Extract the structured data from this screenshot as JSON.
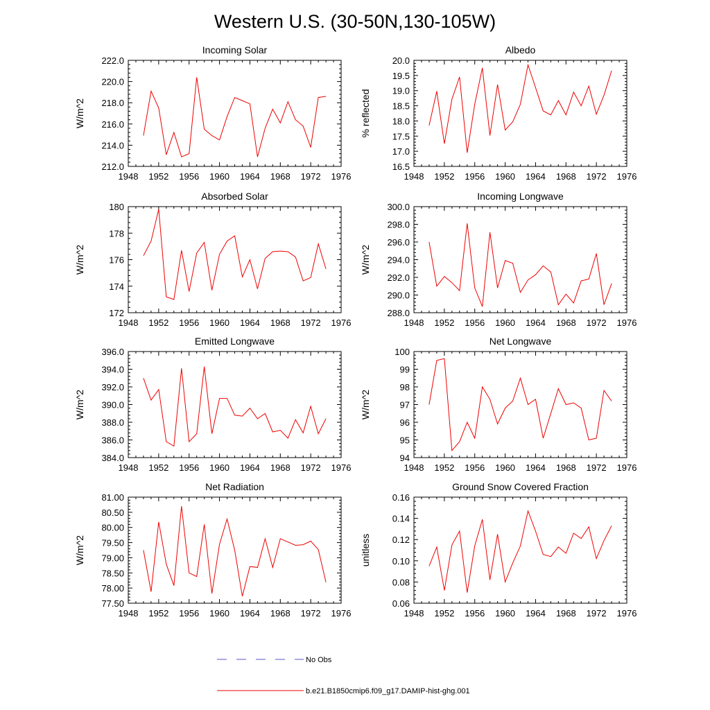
{
  "title": "Western U.S. (30-50N,130-105W)",
  "legend": {
    "entries": [
      {
        "label": "No Obs",
        "color": "#5555cc",
        "dash": true
      },
      {
        "label": "b.e21.B1850cmip6.f09_g17.DAMIP-hist-ghg.001",
        "color": "#ee0000",
        "dash": false
      }
    ]
  },
  "line_color": "#ee0000",
  "chart_data": [
    {
      "type": "line",
      "title": "Incoming Solar",
      "xlabel": "",
      "ylabel": "W/m^2",
      "xlim": [
        1948,
        1976
      ],
      "ylim": [
        212.0,
        222.0
      ],
      "xticks": [
        1948,
        1952,
        1956,
        1960,
        1964,
        1968,
        1972,
        1976
      ],
      "yticks": [
        "212.0",
        "214.0",
        "216.0",
        "218.0",
        "220.0",
        "222.0"
      ],
      "x": [
        1950,
        1951,
        1952,
        1953,
        1954,
        1955,
        1956,
        1957,
        1958,
        1959,
        1960,
        1961,
        1962,
        1963,
        1964,
        1965,
        1966,
        1967,
        1968,
        1969,
        1970,
        1971,
        1972,
        1973,
        1974
      ],
      "series": [
        {
          "name": "b.e21.B1850cmip6.f09_g17.DAMIP-hist-ghg.001",
          "values": [
            214.9,
            219.1,
            217.5,
            213.1,
            215.2,
            212.9,
            213.2,
            220.4,
            215.5,
            214.9,
            214.5,
            216.7,
            218.5,
            218.2,
            217.9,
            212.9,
            215.6,
            217.4,
            216.1,
            218.1,
            216.4,
            215.8,
            213.8,
            218.5,
            218.6
          ]
        }
      ]
    },
    {
      "type": "line",
      "title": "Albedo",
      "xlabel": "",
      "ylabel": "% reflected",
      "xlim": [
        1948,
        1976
      ],
      "ylim": [
        16.5,
        20.0
      ],
      "xticks": [
        1948,
        1952,
        1956,
        1960,
        1964,
        1968,
        1972,
        1976
      ],
      "yticks": [
        "16.5",
        "17.0",
        "17.5",
        "18.0",
        "18.5",
        "19.0",
        "19.5",
        "20.0"
      ],
      "x": [
        1950,
        1951,
        1952,
        1953,
        1954,
        1955,
        1956,
        1957,
        1958,
        1959,
        1960,
        1961,
        1962,
        1963,
        1964,
        1965,
        1966,
        1967,
        1968,
        1969,
        1970,
        1971,
        1972,
        1973,
        1974
      ],
      "series": [
        {
          "name": "b.e21.B1850cmip6.f09_g17.DAMIP-hist-ghg.001",
          "values": [
            17.85,
            18.98,
            17.25,
            18.72,
            19.45,
            16.95,
            18.55,
            19.75,
            17.52,
            19.2,
            17.7,
            17.97,
            18.55,
            19.85,
            19.1,
            18.33,
            18.2,
            18.67,
            18.2,
            18.95,
            18.5,
            19.15,
            18.22,
            18.85,
            19.66
          ]
        }
      ]
    },
    {
      "type": "line",
      "title": "Absorbed Solar",
      "xlabel": "",
      "ylabel": "W/m^2",
      "xlim": [
        1948,
        1976
      ],
      "ylim": [
        172,
        180
      ],
      "xticks": [
        1948,
        1952,
        1956,
        1960,
        1964,
        1968,
        1972,
        1976
      ],
      "yticks": [
        "172",
        "174",
        "176",
        "178",
        "180"
      ],
      "x": [
        1950,
        1951,
        1952,
        1953,
        1954,
        1955,
        1956,
        1957,
        1958,
        1959,
        1960,
        1961,
        1962,
        1963,
        1964,
        1965,
        1966,
        1967,
        1968,
        1969,
        1970,
        1971,
        1972,
        1973,
        1974
      ],
      "series": [
        {
          "name": "b.e21.B1850cmip6.f09_g17.DAMIP-hist-ghg.001",
          "values": [
            176.3,
            177.4,
            179.8,
            173.2,
            173.0,
            176.7,
            173.6,
            176.5,
            177.3,
            173.7,
            176.4,
            177.4,
            177.8,
            174.7,
            176.0,
            173.8,
            176.1,
            176.6,
            176.65,
            176.6,
            176.2,
            174.4,
            174.65,
            177.2,
            175.3
          ]
        }
      ]
    },
    {
      "type": "line",
      "title": "Incoming Longwave",
      "xlabel": "",
      "ylabel": "W/m^2",
      "xlim": [
        1948,
        1976
      ],
      "ylim": [
        288.0,
        300.0
      ],
      "xticks": [
        1948,
        1952,
        1956,
        1960,
        1964,
        1968,
        1972,
        1976
      ],
      "yticks": [
        "288.0",
        "290.0",
        "292.0",
        "294.0",
        "296.0",
        "298.0",
        "300.0"
      ],
      "x": [
        1950,
        1951,
        1952,
        1953,
        1954,
        1955,
        1956,
        1957,
        1958,
        1959,
        1960,
        1961,
        1962,
        1963,
        1964,
        1965,
        1966,
        1967,
        1968,
        1969,
        1970,
        1971,
        1972,
        1973,
        1974
      ],
      "series": [
        {
          "name": "b.e21.B1850cmip6.f09_g17.DAMIP-hist-ghg.001",
          "values": [
            296.0,
            291.0,
            292.1,
            291.4,
            290.5,
            298.1,
            290.8,
            288.7,
            297.1,
            290.8,
            293.9,
            293.6,
            290.3,
            291.7,
            292.3,
            293.3,
            292.6,
            288.9,
            290.1,
            289.1,
            291.6,
            291.8,
            294.7,
            288.9,
            291.3
          ]
        }
      ]
    },
    {
      "type": "line",
      "title": "Emitted Longwave",
      "xlabel": "",
      "ylabel": "W/m^2",
      "xlim": [
        1948,
        1976
      ],
      "ylim": [
        384.0,
        396.0
      ],
      "xticks": [
        1948,
        1952,
        1956,
        1960,
        1964,
        1968,
        1972,
        1976
      ],
      "yticks": [
        "384.0",
        "386.0",
        "388.0",
        "390.0",
        "392.0",
        "394.0",
        "396.0"
      ],
      "x": [
        1950,
        1951,
        1952,
        1953,
        1954,
        1955,
        1956,
        1957,
        1958,
        1959,
        1960,
        1961,
        1962,
        1963,
        1964,
        1965,
        1966,
        1967,
        1968,
        1969,
        1970,
        1971,
        1972,
        1973,
        1974
      ],
      "series": [
        {
          "name": "b.e21.B1850cmip6.f09_g17.DAMIP-hist-ghg.001",
          "values": [
            393.0,
            390.5,
            391.7,
            385.8,
            385.3,
            394.1,
            385.8,
            386.7,
            394.3,
            386.7,
            390.7,
            390.7,
            388.8,
            388.7,
            389.6,
            388.4,
            389.0,
            386.9,
            387.1,
            386.2,
            388.3,
            386.8,
            389.8,
            386.7,
            388.4
          ]
        }
      ]
    },
    {
      "type": "line",
      "title": "Net Longwave",
      "xlabel": "",
      "ylabel": "W/m^2",
      "xlim": [
        1948,
        1976
      ],
      "ylim": [
        94,
        100
      ],
      "xticks": [
        1948,
        1952,
        1956,
        1960,
        1964,
        1968,
        1972,
        1976
      ],
      "yticks": [
        "94",
        "95",
        "96",
        "97",
        "98",
        "99",
        "100"
      ],
      "x": [
        1950,
        1951,
        1952,
        1953,
        1954,
        1955,
        1956,
        1957,
        1958,
        1959,
        1960,
        1961,
        1962,
        1963,
        1964,
        1965,
        1966,
        1967,
        1968,
        1969,
        1970,
        1971,
        1972,
        1973,
        1974
      ],
      "series": [
        {
          "name": "b.e21.B1850cmip6.f09_g17.DAMIP-hist-ghg.001",
          "values": [
            97.0,
            99.5,
            99.6,
            94.4,
            94.9,
            96.0,
            95.1,
            98.0,
            97.3,
            95.9,
            96.8,
            97.2,
            98.5,
            97.0,
            97.3,
            95.1,
            96.5,
            97.9,
            97.0,
            97.1,
            96.8,
            95.0,
            95.1,
            97.8,
            97.2
          ]
        }
      ]
    },
    {
      "type": "line",
      "title": "Net Radiation",
      "xlabel": "",
      "ylabel": "W/m^2",
      "xlim": [
        1948,
        1976
      ],
      "ylim": [
        77.5,
        81.0
      ],
      "xticks": [
        1948,
        1952,
        1956,
        1960,
        1964,
        1968,
        1972,
        1976
      ],
      "yticks": [
        "77.50",
        "78.00",
        "78.50",
        "79.00",
        "79.50",
        "80.00",
        "80.50",
        "81.00"
      ],
      "x": [
        1950,
        1951,
        1952,
        1953,
        1954,
        1955,
        1956,
        1957,
        1958,
        1959,
        1960,
        1961,
        1962,
        1963,
        1964,
        1965,
        1966,
        1967,
        1968,
        1969,
        1970,
        1971,
        1972,
        1973,
        1974
      ],
      "series": [
        {
          "name": "b.e21.B1850cmip6.f09_g17.DAMIP-hist-ghg.001",
          "values": [
            79.25,
            77.88,
            80.18,
            78.79,
            78.08,
            80.7,
            78.5,
            78.38,
            80.1,
            77.82,
            79.45,
            80.28,
            79.25,
            77.73,
            78.71,
            78.68,
            79.63,
            78.68,
            79.63,
            79.52,
            79.41,
            79.43,
            79.55,
            79.27,
            78.19
          ]
        }
      ]
    },
    {
      "type": "line",
      "title": "Ground Snow Covered Fraction",
      "xlabel": "",
      "ylabel": "unitless",
      "xlim": [
        1948,
        1976
      ],
      "ylim": [
        0.06,
        0.16
      ],
      "xticks": [
        1948,
        1952,
        1956,
        1960,
        1964,
        1968,
        1972,
        1976
      ],
      "yticks": [
        "0.06",
        "0.08",
        "0.10",
        "0.12",
        "0.14",
        "0.16"
      ],
      "x": [
        1950,
        1951,
        1952,
        1953,
        1954,
        1955,
        1956,
        1957,
        1958,
        1959,
        1960,
        1961,
        1962,
        1963,
        1964,
        1965,
        1966,
        1967,
        1968,
        1969,
        1970,
        1971,
        1972,
        1973,
        1974
      ],
      "series": [
        {
          "name": "b.e21.B1850cmip6.f09_g17.DAMIP-hist-ghg.001",
          "values": [
            0.095,
            0.113,
            0.072,
            0.115,
            0.128,
            0.07,
            0.114,
            0.139,
            0.082,
            0.125,
            0.08,
            0.098,
            0.114,
            0.147,
            0.128,
            0.106,
            0.104,
            0.113,
            0.107,
            0.126,
            0.121,
            0.132,
            0.102,
            0.119,
            0.133
          ]
        }
      ]
    }
  ]
}
